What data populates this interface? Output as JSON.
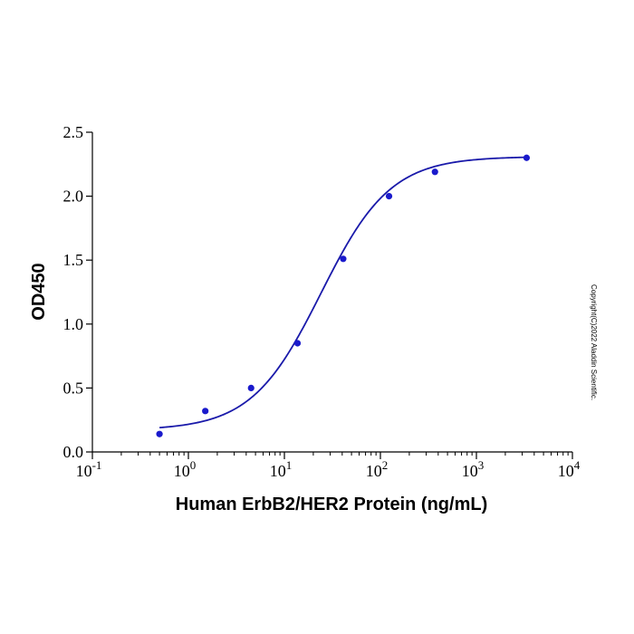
{
  "chart_data": {
    "type": "scatter",
    "xscale": "log",
    "xlabel": "Human ErbB2/HER2 Protein (ng/mL)",
    "ylabel": "OD450",
    "xlim": [
      0.1,
      10000
    ],
    "ylim": [
      0,
      2.5
    ],
    "x_ticks": [
      {
        "value": 0.1,
        "base": "10",
        "exp": "-1"
      },
      {
        "value": 1,
        "base": "10",
        "exp": "0"
      },
      {
        "value": 10,
        "base": "10",
        "exp": "1"
      },
      {
        "value": 100,
        "base": "10",
        "exp": "2"
      },
      {
        "value": 1000,
        "base": "10",
        "exp": "3"
      },
      {
        "value": 10000,
        "base": "10",
        "exp": "4"
      }
    ],
    "y_ticks": [
      {
        "value": 0,
        "label": "0.0"
      },
      {
        "value": 0.5,
        "label": "0.5"
      },
      {
        "value": 1,
        "label": "1.0"
      },
      {
        "value": 1.5,
        "label": "1.5"
      },
      {
        "value": 2,
        "label": "2.0"
      },
      {
        "value": 2.5,
        "label": "2.5"
      }
    ],
    "grid": false,
    "series": [
      {
        "points": [
          {
            "x": 0.5,
            "y": 0.14
          },
          {
            "x": 1.5,
            "y": 0.32
          },
          {
            "x": 4.5,
            "y": 0.5
          },
          {
            "x": 13.7,
            "y": 0.85
          },
          {
            "x": 41,
            "y": 1.51
          },
          {
            "x": 123,
            "y": 2.0
          },
          {
            "x": 370,
            "y": 2.19
          },
          {
            "x": 3333,
            "y": 2.3
          }
        ],
        "fit": {
          "model": "4PL",
          "bottom": 0.17,
          "top": 2.31,
          "ec50": 24,
          "hill": 1.2
        },
        "color": "#1a1acc",
        "line_color": "#1a1aaa"
      }
    ]
  },
  "watermark": "Copyright(C)2022 Aladdin Scientific."
}
